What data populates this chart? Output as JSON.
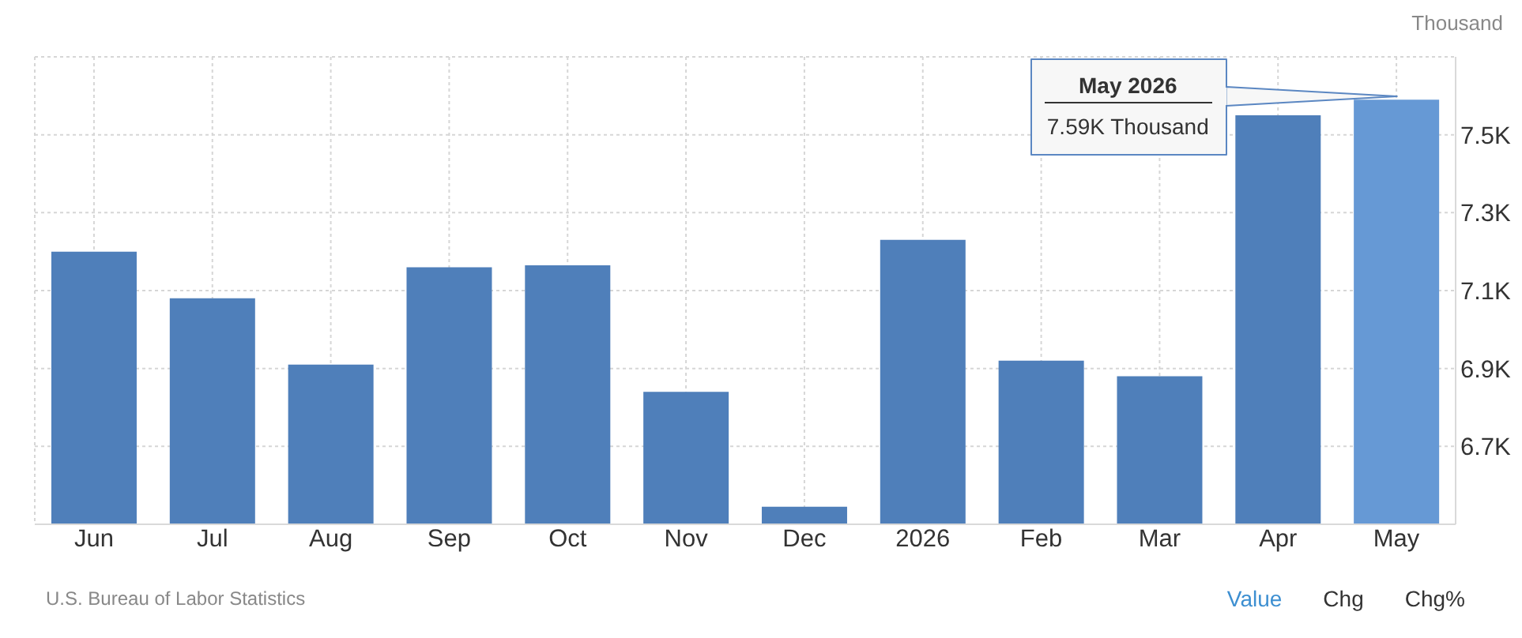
{
  "chart_data": {
    "type": "bar",
    "ylabel": "Thousand",
    "categories": [
      "Jun",
      "Jul",
      "Aug",
      "Sep",
      "Oct",
      "Nov",
      "Dec",
      "2026",
      "Feb",
      "Mar",
      "Apr",
      "May"
    ],
    "values": [
      7200,
      7080,
      6910,
      7160,
      7165,
      6840,
      6545,
      7230,
      6920,
      6880,
      7550,
      7590
    ],
    "colors": [
      "#4f7fba",
      "#4f7fba",
      "#4f7fba",
      "#4f7fba",
      "#4f7fba",
      "#4f7fba",
      "#4f7fba",
      "#4f7fba",
      "#4f7fba",
      "#4f7fba",
      "#4f7fba",
      "#6699d5"
    ],
    "ylim": [
      6500,
      7700
    ],
    "yticks": [
      {
        "value": 6700,
        "label": "6.7K"
      },
      {
        "value": 6900,
        "label": "6.9K"
      },
      {
        "value": 7100,
        "label": "7.1K"
      },
      {
        "value": 7300,
        "label": "7.3K"
      },
      {
        "value": 7500,
        "label": "7.5K"
      },
      {
        "value": 7700,
        "label": null
      }
    ],
    "grid": true,
    "annotations": [
      {
        "text": "May 2026\n7.59K Thousand",
        "x": "May",
        "y": 7590
      },
      "U.S. Bureau of Labor Statistics",
      "Value",
      "Chg",
      "Chg%"
    ]
  }
}
